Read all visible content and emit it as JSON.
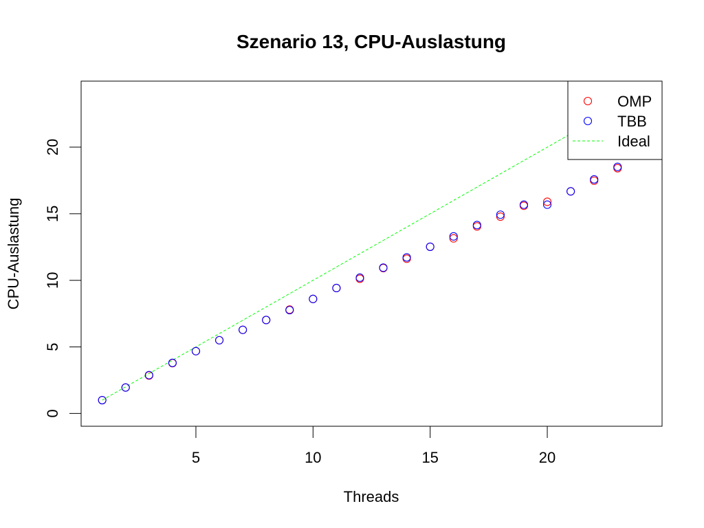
{
  "chart_data": {
    "type": "scatter",
    "title": "Szenario 13, CPU-Auslastung",
    "xlabel": "Threads",
    "ylabel": "CPU-Auslastung",
    "xlim": [
      0.1,
      24.9
    ],
    "ylim": [
      -0.96,
      24.96
    ],
    "xticks": [
      5,
      10,
      15,
      20
    ],
    "yticks": [
      0,
      5,
      10,
      15,
      20
    ],
    "grid": false,
    "legend_position": "top-right",
    "series": [
      {
        "name": "OMP",
        "kind": "points",
        "color": "#ff0000",
        "marker": "open-circle",
        "x": [
          1,
          2,
          3,
          4,
          5,
          6,
          7,
          8,
          9,
          10,
          11,
          12,
          13,
          14,
          15,
          16,
          17,
          18,
          19,
          20,
          21,
          22,
          23
        ],
        "y": [
          1.0,
          1.95,
          2.85,
          3.78,
          4.68,
          5.5,
          6.28,
          7.02,
          7.8,
          8.6,
          9.42,
          10.12,
          10.92,
          11.62,
          12.52,
          13.15,
          14.05,
          14.78,
          15.6,
          15.9,
          16.68,
          17.48,
          18.42
        ]
      },
      {
        "name": "TBB",
        "kind": "points",
        "color": "#0000ff",
        "marker": "open-circle",
        "x": [
          1,
          2,
          3,
          4,
          5,
          6,
          7,
          8,
          9,
          10,
          11,
          12,
          13,
          14,
          15,
          16,
          17,
          18,
          19,
          20,
          21,
          22,
          23
        ],
        "y": [
          1.0,
          1.95,
          2.88,
          3.8,
          4.68,
          5.5,
          6.28,
          7.02,
          7.76,
          8.6,
          9.42,
          10.2,
          10.95,
          11.72,
          12.52,
          13.3,
          14.15,
          14.93,
          15.68,
          15.68,
          16.68,
          17.58,
          18.52
        ]
      },
      {
        "name": "Ideal",
        "kind": "line",
        "color": "#00ff00",
        "dash": "dashed",
        "x": [
          1,
          2,
          3,
          4,
          5,
          6,
          7,
          8,
          9,
          10,
          11,
          12,
          13,
          14,
          15,
          16,
          17,
          18,
          19,
          20,
          21,
          22,
          23
        ],
        "y": [
          1,
          2,
          3,
          4,
          5,
          6,
          7,
          8,
          9,
          10,
          11,
          12,
          13,
          14,
          15,
          16,
          17,
          18,
          19,
          20,
          21,
          22,
          23
        ]
      }
    ]
  }
}
